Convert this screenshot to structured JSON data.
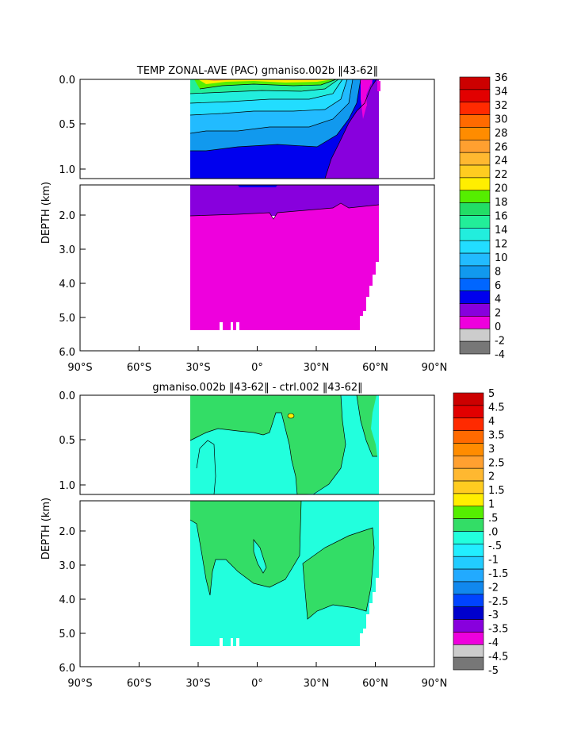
{
  "chart_data": [
    {
      "type": "heatmap",
      "title": "TEMP ZONAL-AVE (PAC) gmaniso.002b ‖43-62‖",
      "xlabel": "",
      "ylabel": "DEPTH (km)",
      "x_ticks": [
        "90°S",
        "60°S",
        "30°S",
        "0°",
        "30°N",
        "60°N",
        "90°N"
      ],
      "y_ticks": [
        "0.0",
        "0.5",
        "1.0",
        "2.0",
        "3.0",
        "4.0",
        "5.0",
        "6.0"
      ],
      "colorbar_levels": [
        "36",
        "34",
        "32",
        "30",
        "28",
        "26",
        "24",
        "22",
        "20",
        "18",
        "16",
        "14",
        "12",
        "10",
        "8",
        "6",
        "4",
        "2",
        "0",
        "-2",
        "-4"
      ],
      "colorbar_colors": [
        "#cc0000",
        "#e20000",
        "#ff2a00",
        "#ff6a00",
        "#ff8c00",
        "#ffa030",
        "#ffb830",
        "#ffcc20",
        "#ffee00",
        "#55ee00",
        "#22dd66",
        "#22ee99",
        "#22eedd",
        "#22ddff",
        "#22bbff",
        "#1199ee",
        "#0066ff",
        "#0000ee",
        "#8800dd",
        "#ee00dd",
        "#cccccc",
        "#777777"
      ],
      "x_range": [
        -90,
        90
      ],
      "y_range": [
        6.0,
        0.0
      ]
    },
    {
      "type": "heatmap",
      "title": "gmaniso.002b ‖43-62‖ - ctrl.002 ‖43-62‖",
      "xlabel": "",
      "ylabel": "DEPTH (km)",
      "x_ticks": [
        "90°S",
        "60°S",
        "30°S",
        "0°",
        "30°N",
        "60°N",
        "90°N"
      ],
      "y_ticks": [
        "0.0",
        "0.5",
        "1.0",
        "2.0",
        "3.0",
        "4.0",
        "5.0",
        "6.0"
      ],
      "colorbar_levels": [
        "5",
        "4.5",
        "4",
        "3.5",
        "3",
        "2.5",
        "2",
        "1.5",
        "1",
        ".5",
        ".0",
        "-.5",
        "-1",
        "-1.5",
        "-2",
        "-2.5",
        "-3",
        "-3.5",
        "-4",
        "-4.5",
        "-5"
      ],
      "colorbar_colors": [
        "#cc0000",
        "#e20000",
        "#ff2a00",
        "#ff6a00",
        "#ff8c00",
        "#ffa030",
        "#ffb830",
        "#ffcc20",
        "#ffee00",
        "#55ee00",
        "#33dd66",
        "#22ffdd",
        "#22eeff",
        "#22ccff",
        "#22aaff",
        "#1188ee",
        "#0044ff",
        "#0000cc",
        "#8800dd",
        "#ee00dd",
        "#cccccc",
        "#777777"
      ],
      "x_range": [
        -90,
        90
      ],
      "y_range": [
        6.0,
        0.0
      ]
    }
  ]
}
